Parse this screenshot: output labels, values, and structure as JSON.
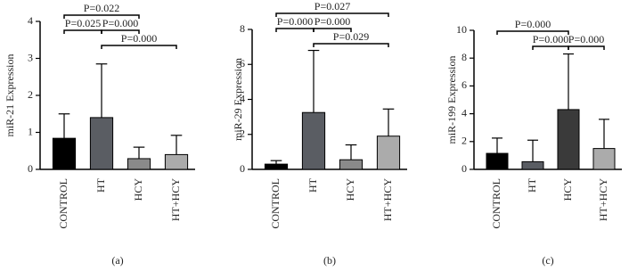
{
  "chart_data": [
    {
      "type": "bar",
      "y_label": "miR-21 Expression",
      "caption": "(a)",
      "categories": [
        "CONTROL",
        "HT",
        "HCY",
        "HT+HCY"
      ],
      "values": [
        0.84,
        1.4,
        0.29,
        0.4
      ],
      "errors": [
        0.66,
        1.45,
        0.31,
        0.52
      ],
      "colors": [
        "#000000",
        "#5a5d63",
        "#8a8a8a",
        "#ababab"
      ],
      "ylim": [
        0,
        4
      ],
      "yticks": [
        0,
        1,
        2,
        3,
        4
      ],
      "annotations": [
        {
          "text": "P=0.022",
          "pair": [
            "CONTROL",
            "HCY"
          ]
        },
        {
          "text": "P=0.025",
          "pair": [
            "CONTROL",
            "HT"
          ]
        },
        {
          "text": "P=0.000",
          "pair": [
            "HT",
            "HCY"
          ]
        },
        {
          "text": "P=0.000",
          "pair": [
            "HT",
            "HT+HCY"
          ]
        }
      ]
    },
    {
      "type": "bar",
      "y_label": "miR-29 Expression",
      "caption": "(b)",
      "categories": [
        "CONTROL",
        "HT",
        "HCY",
        "HT+HCY"
      ],
      "values": [
        0.3,
        3.25,
        0.55,
        1.9
      ],
      "errors": [
        0.2,
        3.55,
        0.85,
        1.55
      ],
      "colors": [
        "#000000",
        "#5a5d63",
        "#8a8a8a",
        "#ababab"
      ],
      "ylim": [
        0,
        8
      ],
      "yticks": [
        0,
        2,
        4,
        6,
        8
      ],
      "annotations": [
        {
          "text": "P=0.027",
          "pair": [
            "CONTROL",
            "HT+HCY"
          ]
        },
        {
          "text": "P=0.000",
          "pair": [
            "CONTROL",
            "HT"
          ]
        },
        {
          "text": "P=0.000",
          "pair": [
            "HT",
            "HCY"
          ]
        },
        {
          "text": "P=0.029",
          "pair": [
            "HT",
            "HT+HCY"
          ]
        }
      ]
    },
    {
      "type": "bar",
      "y_label": "miR-199 Expression",
      "caption": "(c)",
      "categories": [
        "CONTROL",
        "HT",
        "HCY",
        "HT+HCY"
      ],
      "values": [
        1.15,
        0.55,
        4.3,
        1.5
      ],
      "errors": [
        1.1,
        1.55,
        4.0,
        2.1
      ],
      "colors": [
        "#000000",
        "#5a5d63",
        "#3a3a3a",
        "#ababab"
      ],
      "ylim": [
        0,
        10
      ],
      "yticks": [
        0,
        2,
        4,
        6,
        8,
        10
      ],
      "annotations": [
        {
          "text": "P=0.000",
          "pair": [
            "CONTROL",
            "HCY"
          ]
        },
        {
          "text": "P=0.000",
          "pair": [
            "HT",
            "HCY"
          ]
        },
        {
          "text": "P=0.000",
          "pair": [
            "HCY",
            "HT+HCY"
          ]
        }
      ]
    }
  ]
}
